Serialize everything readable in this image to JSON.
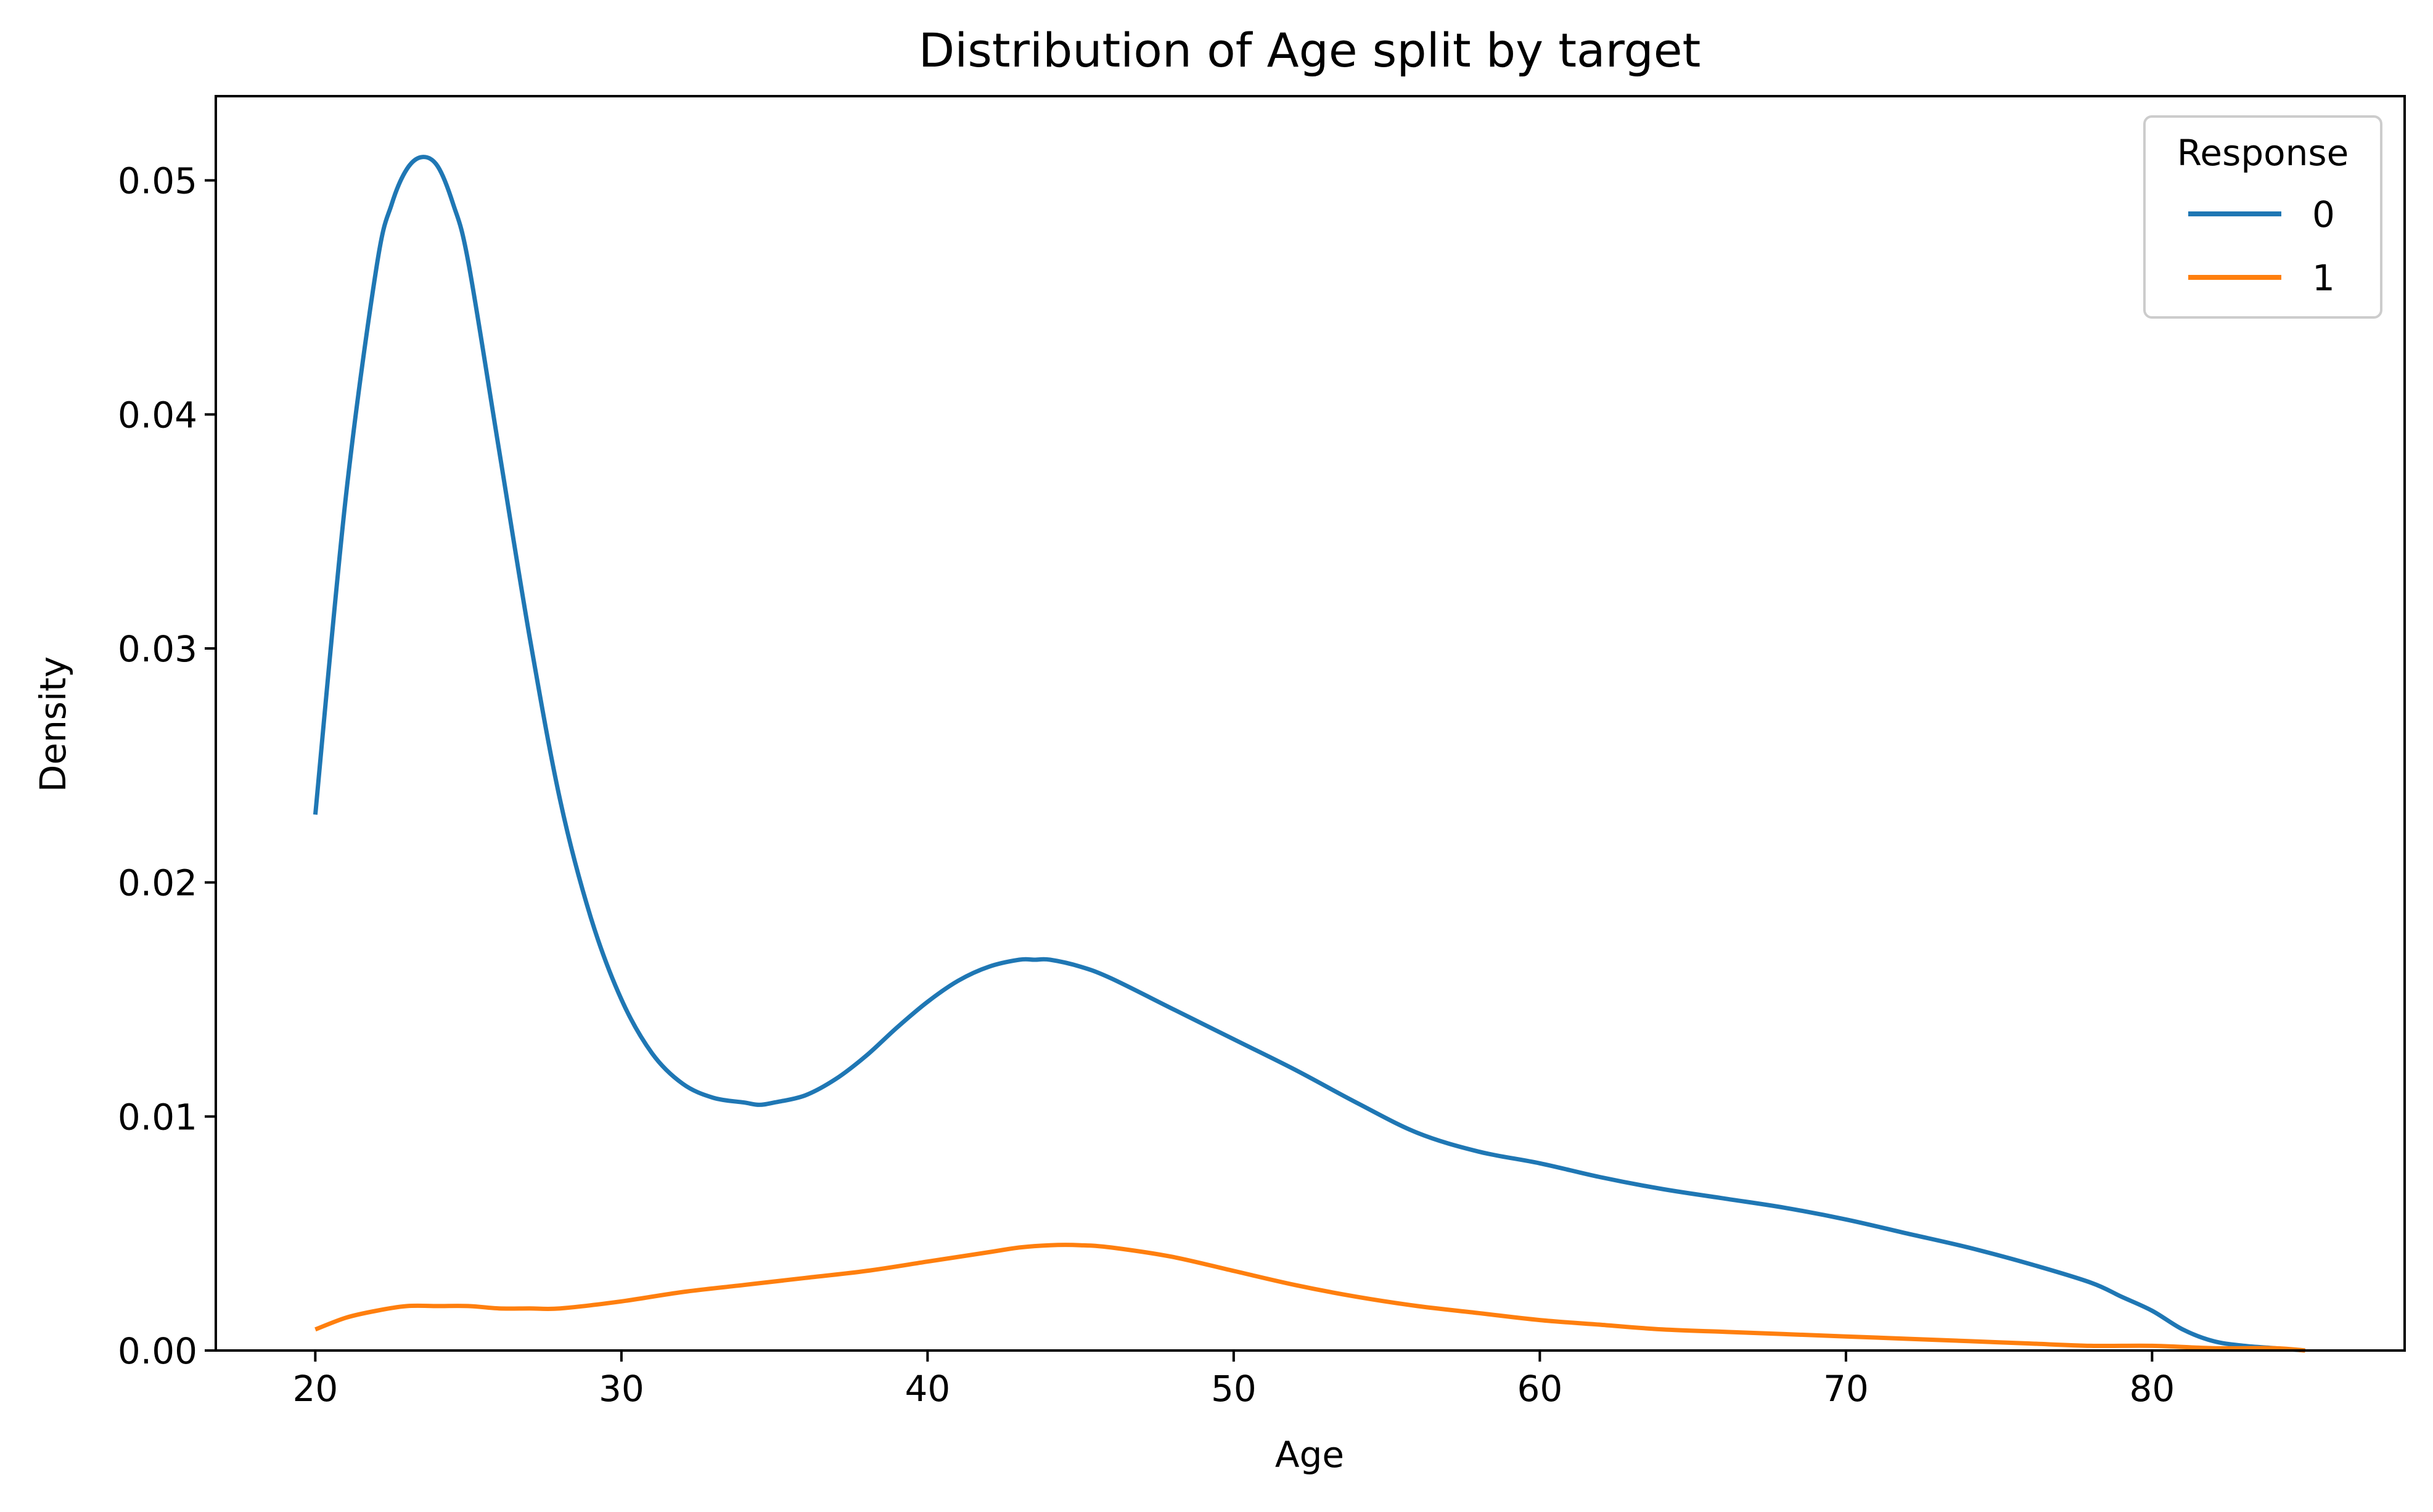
{
  "chart_data": {
    "type": "line",
    "title": "Distribution of Age split by target",
    "xlabel": "Age",
    "ylabel": "Density",
    "xlim": [
      16.75,
      88.25
    ],
    "ylim": [
      0,
      0.0536
    ],
    "xticks": [
      20,
      30,
      40,
      50,
      60,
      70,
      80
    ],
    "xtick_labels": [
      "20",
      "30",
      "40",
      "50",
      "60",
      "70",
      "80"
    ],
    "yticks": [
      0,
      0.01,
      0.02,
      0.03,
      0.04,
      0.05
    ],
    "ytick_labels": [
      "0.00",
      "0.01",
      "0.02",
      "0.03",
      "0.04",
      "0.05"
    ],
    "grid": false,
    "legend": {
      "title": "Response",
      "placement": "top-right"
    },
    "series": [
      {
        "name": "0",
        "color": "#1f77b4",
        "x": [
          20,
          21,
          22,
          22.5,
          23,
          23.5,
          24,
          24.5,
          25,
          26,
          27,
          28,
          29,
          30,
          31,
          32,
          33,
          34,
          34.5,
          35,
          36,
          37,
          38,
          39,
          40,
          41,
          42,
          43,
          43.5,
          44,
          45,
          46,
          48,
          50,
          52,
          54,
          56,
          58,
          60,
          62,
          64,
          66,
          68,
          70,
          72,
          74,
          76,
          78,
          79,
          80,
          81,
          82,
          83,
          84,
          85
        ],
        "y": [
          0.0229,
          0.0365,
          0.0463,
          0.049,
          0.0505,
          0.051,
          0.0506,
          0.049,
          0.0465,
          0.0385,
          0.0305,
          0.0235,
          0.0185,
          0.015,
          0.0127,
          0.0114,
          0.0108,
          0.0106,
          0.0105,
          0.0106,
          0.0109,
          0.0116,
          0.0126,
          0.0138,
          0.0149,
          0.0158,
          0.0164,
          0.0167,
          0.0167,
          0.0167,
          0.0164,
          0.0159,
          0.0146,
          0.0133,
          0.012,
          0.0106,
          0.0093,
          0.0085,
          0.008,
          0.0074,
          0.0069,
          0.0065,
          0.0061,
          0.0056,
          0.005,
          0.0044,
          0.0037,
          0.0029,
          0.0023,
          0.0017,
          0.0009,
          0.0004,
          0.0002,
          0.0001,
          0.0
        ]
      },
      {
        "name": "1",
        "color": "#ff7f0e",
        "x": [
          20,
          21,
          22,
          23,
          24,
          25,
          26,
          27,
          28,
          30,
          32,
          34,
          36,
          38,
          40,
          42,
          43,
          44,
          45,
          46,
          48,
          50,
          52,
          54,
          56,
          58,
          60,
          62,
          64,
          66,
          68,
          70,
          72,
          74,
          76,
          78,
          80,
          82,
          84,
          85
        ],
        "y": [
          0.0009,
          0.0014,
          0.0017,
          0.0019,
          0.0019,
          0.0019,
          0.0018,
          0.0018,
          0.0018,
          0.0021,
          0.0025,
          0.0028,
          0.0031,
          0.0034,
          0.0038,
          0.0042,
          0.0044,
          0.0045,
          0.0045,
          0.0044,
          0.004,
          0.0034,
          0.0028,
          0.0023,
          0.0019,
          0.0016,
          0.0013,
          0.0011,
          0.0009,
          0.0008,
          0.0007,
          0.0006,
          0.0005,
          0.0004,
          0.0003,
          0.0002,
          0.0002,
          0.0001,
          0.0001,
          0.0
        ]
      }
    ]
  }
}
